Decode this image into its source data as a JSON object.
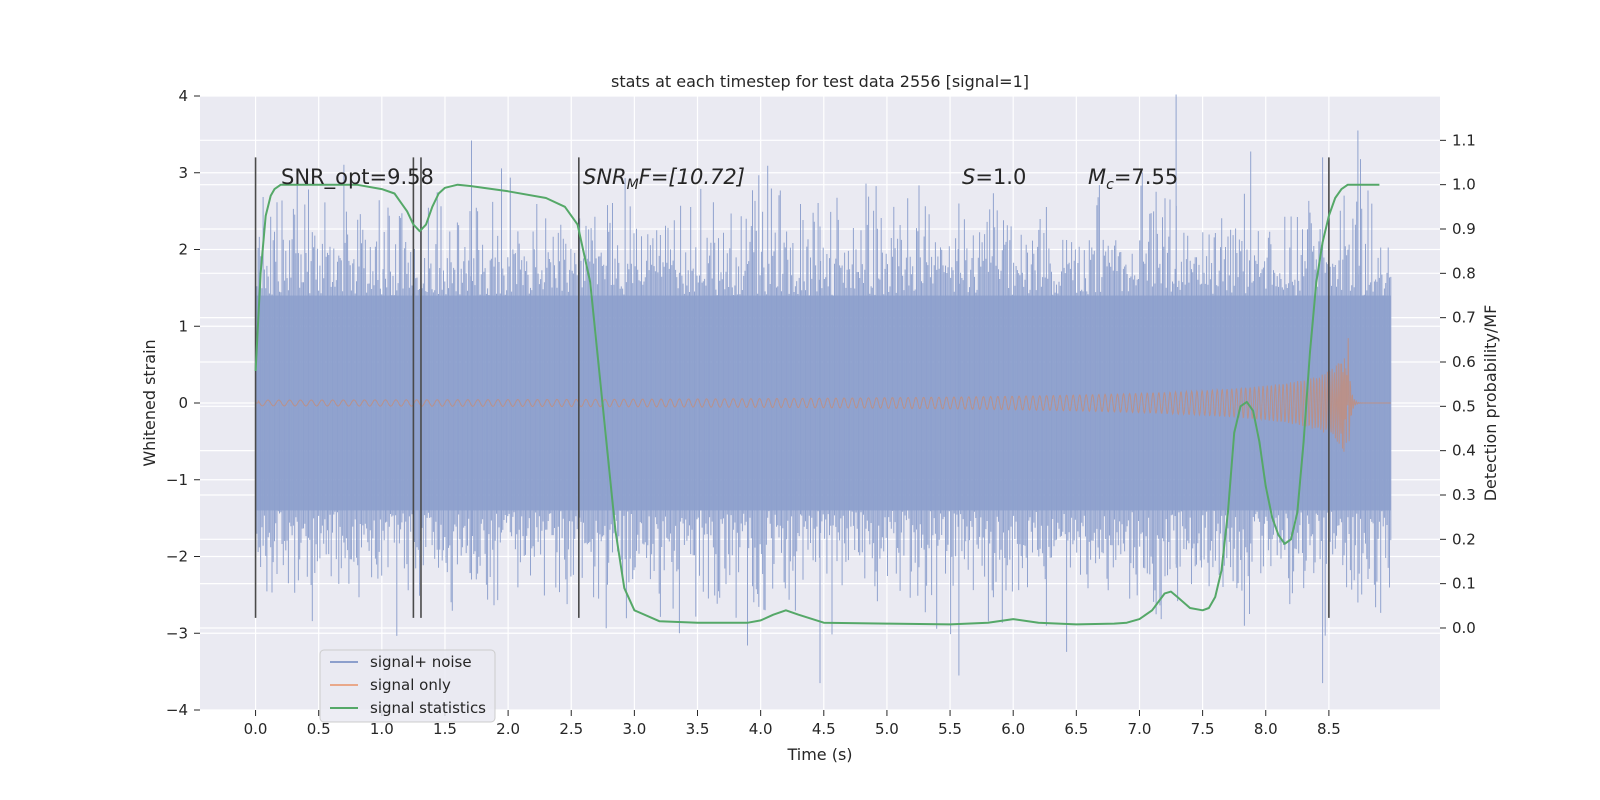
{
  "chart_data": {
    "type": "line",
    "title": "stats at each timestep for test data 2556 [signal=1]",
    "xlabel": "Time (s)",
    "ylabel": "Whitened strain",
    "y2label": "Detection probability/MF",
    "xlim": [
      -0.44,
      9.38
    ],
    "ylim": [
      -4.0,
      4.0
    ],
    "y2lim": [
      -0.185,
      1.2
    ],
    "xticks": [
      "0.0",
      "0.5",
      "1.0",
      "1.5",
      "2.0",
      "2.5",
      "3.0",
      "3.5",
      "4.0",
      "4.5",
      "5.0",
      "5.5",
      "6.0",
      "6.5",
      "7.0",
      "7.5",
      "8.0",
      "8.5"
    ],
    "yticks": [
      "−4",
      "−3",
      "−2",
      "−1",
      "0",
      "1",
      "2",
      "3",
      "4"
    ],
    "y2ticks": [
      "0.0",
      "0.1",
      "0.2",
      "0.3",
      "0.4",
      "0.5",
      "0.6",
      "0.7",
      "0.8",
      "0.9",
      "1.0",
      "1.1"
    ],
    "grid": true,
    "legend_position": "bottom-left",
    "colors": {
      "noise": "#8c9fcc",
      "signal": "#dd8452",
      "stats": "#55a868",
      "vline": "#4a4a4a",
      "background": "#eaeaf2",
      "grid": "#ffffff"
    },
    "series": [
      {
        "name": "signal+ noise",
        "kind": "noise",
        "x_range": [
          0.0,
          8.99
        ],
        "upper_envelope": 1.4,
        "lower_envelope": -1.4,
        "peak_max": 4.02,
        "peak_min": -3.65
      },
      {
        "name": "signal only",
        "kind": "chirp",
        "x_range": [
          0.0,
          8.99
        ],
        "merger_time": 8.65,
        "peak_amplitude": 1.1
      },
      {
        "name": "signal statistics",
        "kind": "statistic",
        "x": [
          0.0,
          0.04,
          0.08,
          0.12,
          0.15,
          0.2,
          0.3,
          0.5,
          0.8,
          1.0,
          1.1,
          1.15,
          1.2,
          1.25,
          1.3,
          1.35,
          1.4,
          1.45,
          1.5,
          1.6,
          1.7,
          2.0,
          2.3,
          2.45,
          2.55,
          2.65,
          2.75,
          2.85,
          2.92,
          3.0,
          3.2,
          3.5,
          3.9,
          4.0,
          4.1,
          4.2,
          4.3,
          4.5,
          5.0,
          5.5,
          5.8,
          6.0,
          6.2,
          6.5,
          6.8,
          6.9,
          7.0,
          7.1,
          7.2,
          7.25,
          7.3,
          7.4,
          7.5,
          7.55,
          7.6,
          7.65,
          7.7,
          7.75,
          7.8,
          7.85,
          7.9,
          7.95,
          8.0,
          8.05,
          8.1,
          8.15,
          8.2,
          8.25,
          8.3,
          8.35,
          8.4,
          8.45,
          8.5,
          8.55,
          8.6,
          8.65,
          8.7,
          8.8,
          8.9
        ],
        "y": [
          0.58,
          0.8,
          0.93,
          0.975,
          0.99,
          1.0,
          1.0,
          1.0,
          1.0,
          0.99,
          0.98,
          0.96,
          0.94,
          0.91,
          0.895,
          0.91,
          0.95,
          0.98,
          0.993,
          1.0,
          0.997,
          0.985,
          0.97,
          0.95,
          0.91,
          0.78,
          0.5,
          0.22,
          0.09,
          0.04,
          0.015,
          0.012,
          0.012,
          0.017,
          0.03,
          0.04,
          0.03,
          0.012,
          0.01,
          0.008,
          0.012,
          0.02,
          0.012,
          0.008,
          0.01,
          0.012,
          0.02,
          0.04,
          0.078,
          0.082,
          0.07,
          0.045,
          0.04,
          0.045,
          0.07,
          0.13,
          0.26,
          0.44,
          0.5,
          0.51,
          0.49,
          0.42,
          0.32,
          0.25,
          0.21,
          0.19,
          0.2,
          0.26,
          0.42,
          0.62,
          0.78,
          0.87,
          0.93,
          0.97,
          0.99,
          1.0,
          1.0,
          1.0,
          1.0
        ]
      }
    ],
    "vlines": [
      0.0,
      1.25,
      1.31,
      2.56,
      8.5
    ],
    "vline_y_range": [
      -2.8,
      3.2
    ],
    "annotations": [
      "SNR_opt=9.58",
      "SNR_MF=[10.72]",
      "S=1.0",
      "M_c=7.55"
    ]
  },
  "annotations_display": {
    "snr_opt": "SNR_opt=9.58",
    "snr_mf_base": "SNR",
    "snr_mf_sub": "M",
    "snr_mf_rest": "F=[10.72]",
    "s_var": "S",
    "s_rest": "=1.0",
    "mc_var": "M",
    "mc_sub": "c",
    "mc_rest": "=7.55"
  },
  "legend": [
    {
      "label": "signal+ noise"
    },
    {
      "label": "signal only"
    },
    {
      "label": "signal statistics"
    }
  ]
}
